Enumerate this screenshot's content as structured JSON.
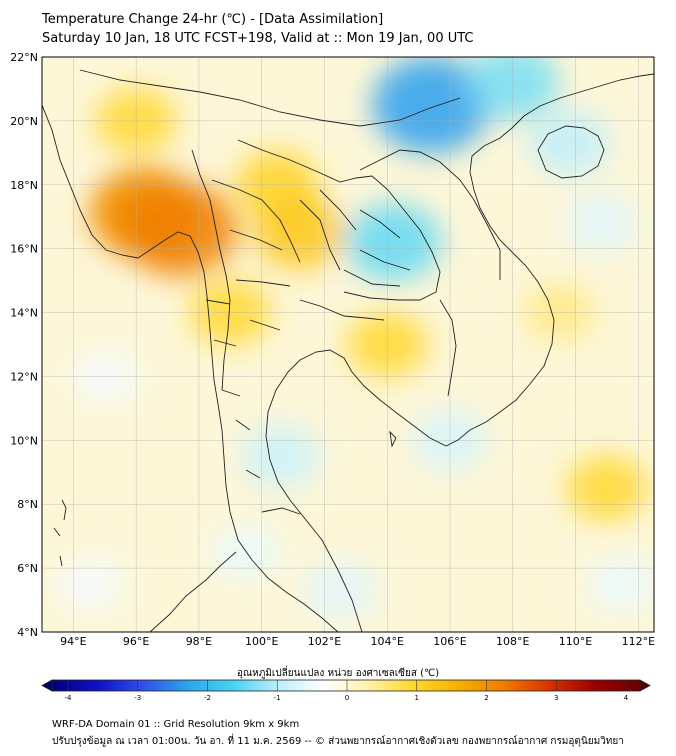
{
  "header": {
    "title_line1": "Temperature Change 24-hr (℃) - [Data Assimilation]",
    "title_line2": "Saturday 10 Jan, 18 UTC FCST+198, Valid at :: Mon 19 Jan, 00 UTC"
  },
  "map": {
    "region": "Mainland Southeast Asia",
    "lat_range": [
      4,
      22
    ],
    "lon_range": [
      93,
      112.5
    ],
    "lat_labels": [
      "4°N",
      "6°N",
      "8°N",
      "10°N",
      "12°N",
      "14°N",
      "16°N",
      "18°N",
      "20°N",
      "22°N"
    ],
    "lon_labels": [
      "94°E",
      "96°E",
      "98°E",
      "100°E",
      "102°E",
      "104°E",
      "106°E",
      "108°E",
      "110°E",
      "112°E"
    ],
    "field_regions": [
      {
        "name": "Myanmar warm (yellow)",
        "lon": 96.2,
        "lat": 17.2,
        "value": 1.2
      },
      {
        "name": "Myanmar warm peak",
        "lon": 96.3,
        "lat": 17.1,
        "value": 2.0
      },
      {
        "name": "Myanmar warm peak 2",
        "lon": 97.4,
        "lat": 16.6,
        "value": 2.1
      },
      {
        "name": "North Myanmar warm",
        "lon": 96.0,
        "lat": 20.0,
        "value": 0.9
      },
      {
        "name": "North Thailand warm",
        "lon": 100.5,
        "lat": 18.0,
        "value": 1.0
      },
      {
        "name": "West Thailand warm",
        "lon": 99.0,
        "lat": 14.0,
        "value": 0.9
      },
      {
        "name": "Central Thailand warm",
        "lon": 101.2,
        "lat": 16.5,
        "value": 1.2
      },
      {
        "name": "Cambodia warm",
        "lon": 104.0,
        "lat": 13.0,
        "value": 0.9
      },
      {
        "name": "Northeast Thailand/Laos cool",
        "lon": 104.2,
        "lat": 16.2,
        "value": -1.4
      },
      {
        "name": "Northern Vietnam cold",
        "lon": 105.4,
        "lat": 20.5,
        "value": -2.2
      },
      {
        "name": "South China cool",
        "lon": 108.0,
        "lat": 21.2,
        "value": -1.3
      },
      {
        "name": "Hainan cool",
        "lon": 109.8,
        "lat": 19.3,
        "value": -0.9
      },
      {
        "name": "Gulf of Thailand cool",
        "lon": 100.6,
        "lat": 9.5,
        "value": -0.8
      },
      {
        "name": "Mekong Delta cool",
        "lon": 106.0,
        "lat": 10.0,
        "value": -0.7
      },
      {
        "name": "Andaman cool",
        "lon": 95.0,
        "lat": 12.0,
        "value": -0.4
      },
      {
        "name": "South China Sea warm",
        "lon": 111.0,
        "lat": 8.5,
        "value": 0.9
      },
      {
        "name": "Central Vietnam sea warm",
        "lon": 109.5,
        "lat": 14.0,
        "value": 0.5
      },
      {
        "name": "Malaysia peninsula cool",
        "lon": 102.5,
        "lat": 5.3,
        "value": -0.6
      },
      {
        "name": "Malaysia peninsula cool 2",
        "lon": 99.5,
        "lat": 6.5,
        "value": -0.5
      },
      {
        "name": "Andaman south cool",
        "lon": 94.5,
        "lat": 5.5,
        "value": -0.4
      },
      {
        "name": "East sea cool",
        "lon": 110.8,
        "lat": 16.8,
        "value": -0.6
      },
      {
        "name": "SCS east cool",
        "lon": 111.5,
        "lat": 5.5,
        "value": -0.5
      }
    ]
  },
  "colorbar": {
    "label": "อุณหภูมิเปลี่ยนแปลง หน่วย องศาเซลเซียส (℃)",
    "ticks": [
      "-4",
      "-3",
      "-2",
      "-1",
      "0",
      "1",
      "2",
      "3",
      "4"
    ],
    "min": -4,
    "max": 4,
    "stops": [
      "#00007a",
      "#1010c8",
      "#2f4fe8",
      "#2aa5ee",
      "#48d2f2",
      "#bdeefa",
      "#ffffff",
      "#fff2a8",
      "#ffd62a",
      "#f5b200",
      "#f07a00",
      "#d83000",
      "#9a0000",
      "#6a0000"
    ]
  },
  "footer": {
    "line1": "WRF-DA Domain 01 :: Grid Resolution 9km x 9km",
    "line2": "ปรับปรุงข้อมูล ณ เวลา 01:00น. วัน อา. ที่ 11 ม.ค. 2569 -- © ส่วนพยากรณ์อากาศเชิงตัวเลข กองพยากรณ์อากาศ กรมอุตุนิยมวิทยา"
  }
}
